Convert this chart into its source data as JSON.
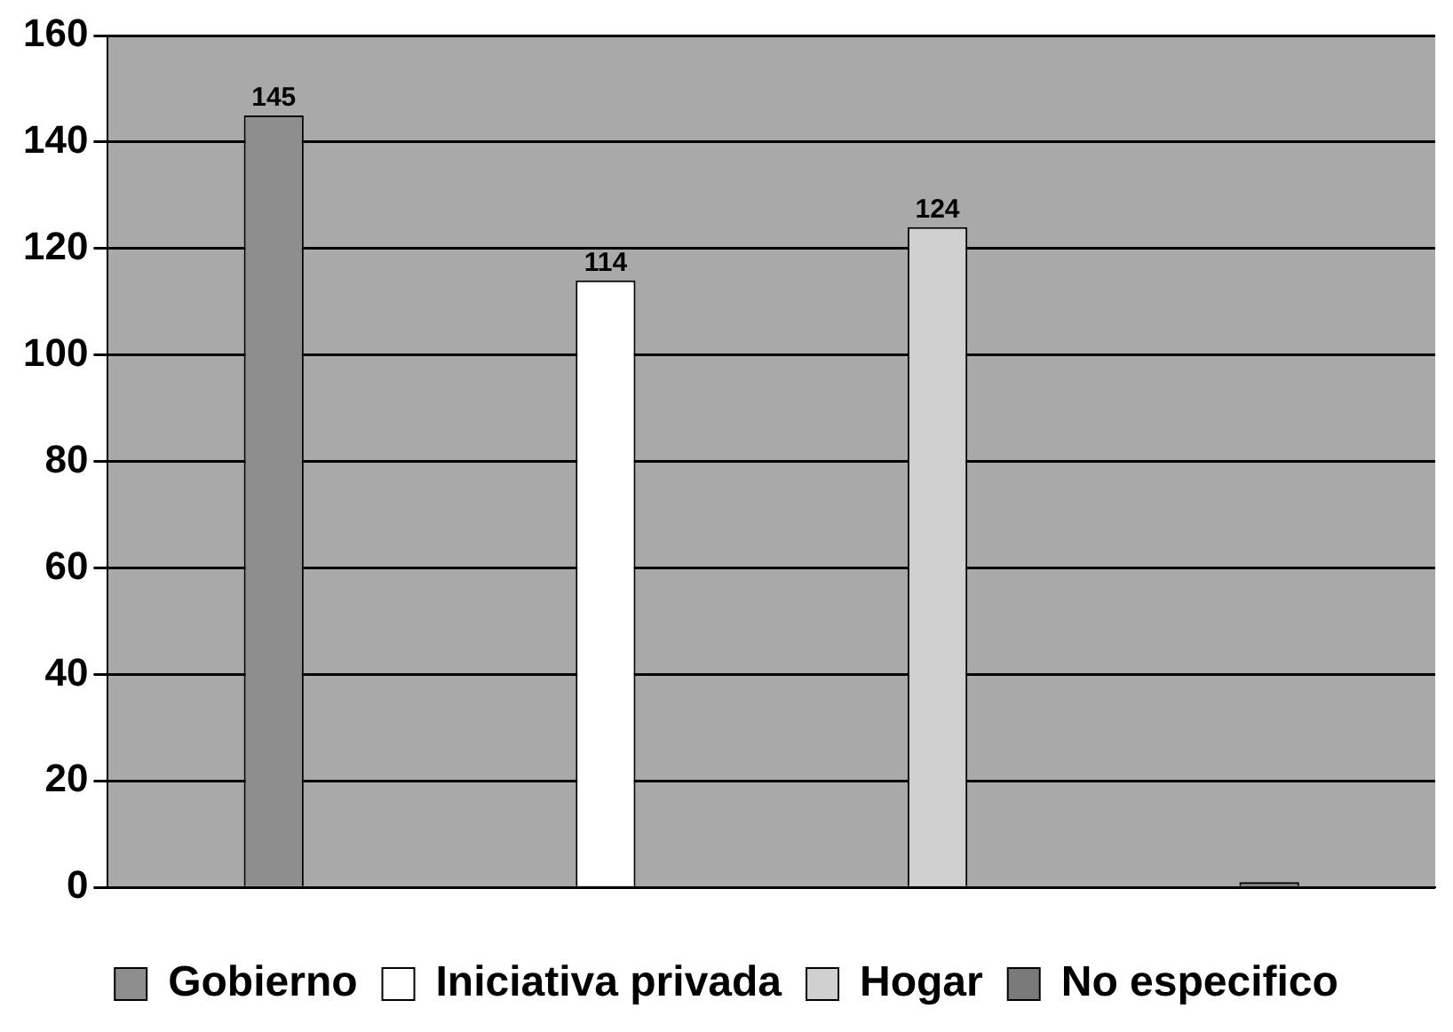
{
  "chart_data": {
    "type": "bar",
    "categories": [
      null,
      null,
      null,
      null
    ],
    "series": [
      {
        "name": "Gobierno",
        "color": "#8e8e8e",
        "values": [
          145,
          null,
          null,
          null
        ],
        "value_labels": [
          "145",
          null,
          null,
          null
        ]
      },
      {
        "name": "Iniciativa privada",
        "color": "#ffffff",
        "values": [
          null,
          114,
          null,
          null
        ],
        "value_labels": [
          null,
          "114",
          null,
          null
        ]
      },
      {
        "name": "Hogar",
        "color": "#d0d0d0",
        "values": [
          null,
          null,
          124,
          null
        ],
        "value_labels": [
          null,
          null,
          "124",
          null
        ]
      },
      {
        "name": "No especifico",
        "color": "#7a7a7a",
        "values": [
          null,
          null,
          null,
          0
        ],
        "value_labels": [
          null,
          null,
          null,
          null
        ]
      }
    ],
    "ylim": [
      0,
      160
    ],
    "yticks": [
      0,
      20,
      40,
      60,
      80,
      100,
      120,
      140,
      160
    ],
    "grid": "y",
    "legend": "bottom"
  }
}
